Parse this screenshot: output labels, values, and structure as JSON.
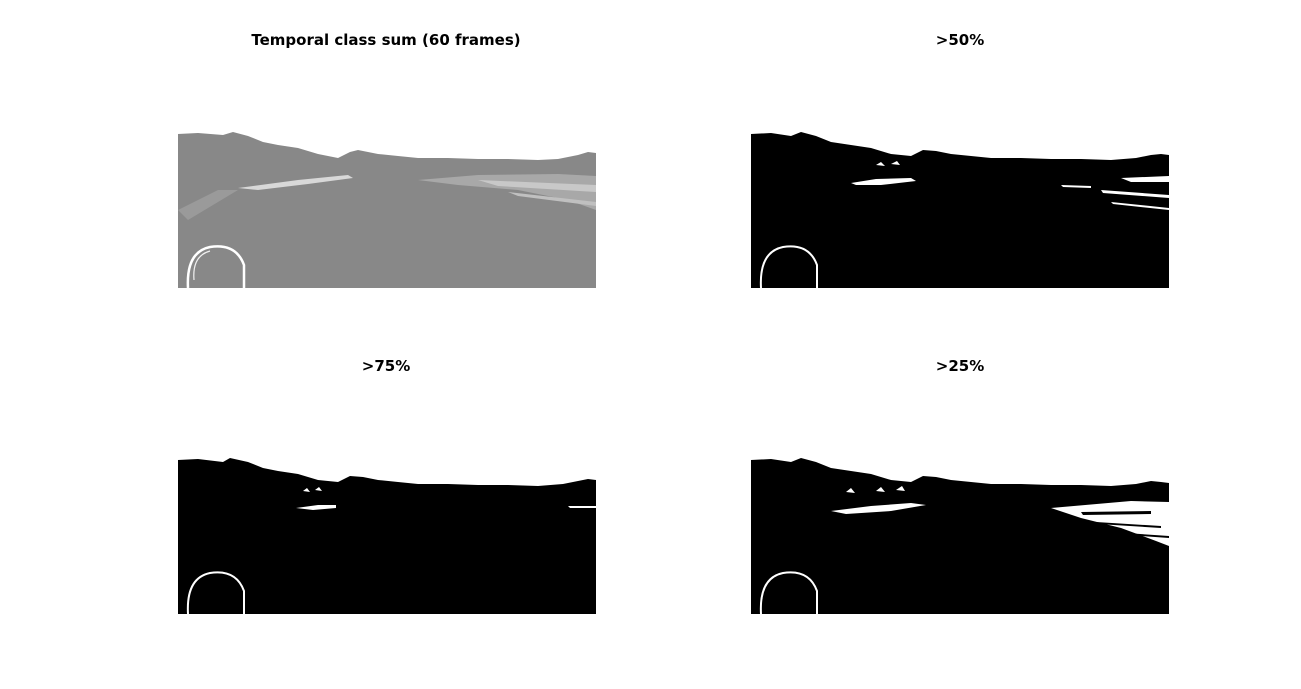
{
  "figure": {
    "panels": [
      {
        "title": "Temporal class sum (60 frames)",
        "kind": "grayscale-sum"
      },
      {
        "title": ">50%",
        "kind": "binary-threshold"
      },
      {
        "title": ">75%",
        "kind": "binary-threshold"
      },
      {
        "title": ">25%",
        "kind": "binary-threshold"
      }
    ]
  },
  "colors": {
    "background": "#ffffff",
    "gray_fill": "#888888",
    "mask_fill": "#000000",
    "highlight": "#ffffff",
    "gray_light": "#d8d8d8"
  }
}
